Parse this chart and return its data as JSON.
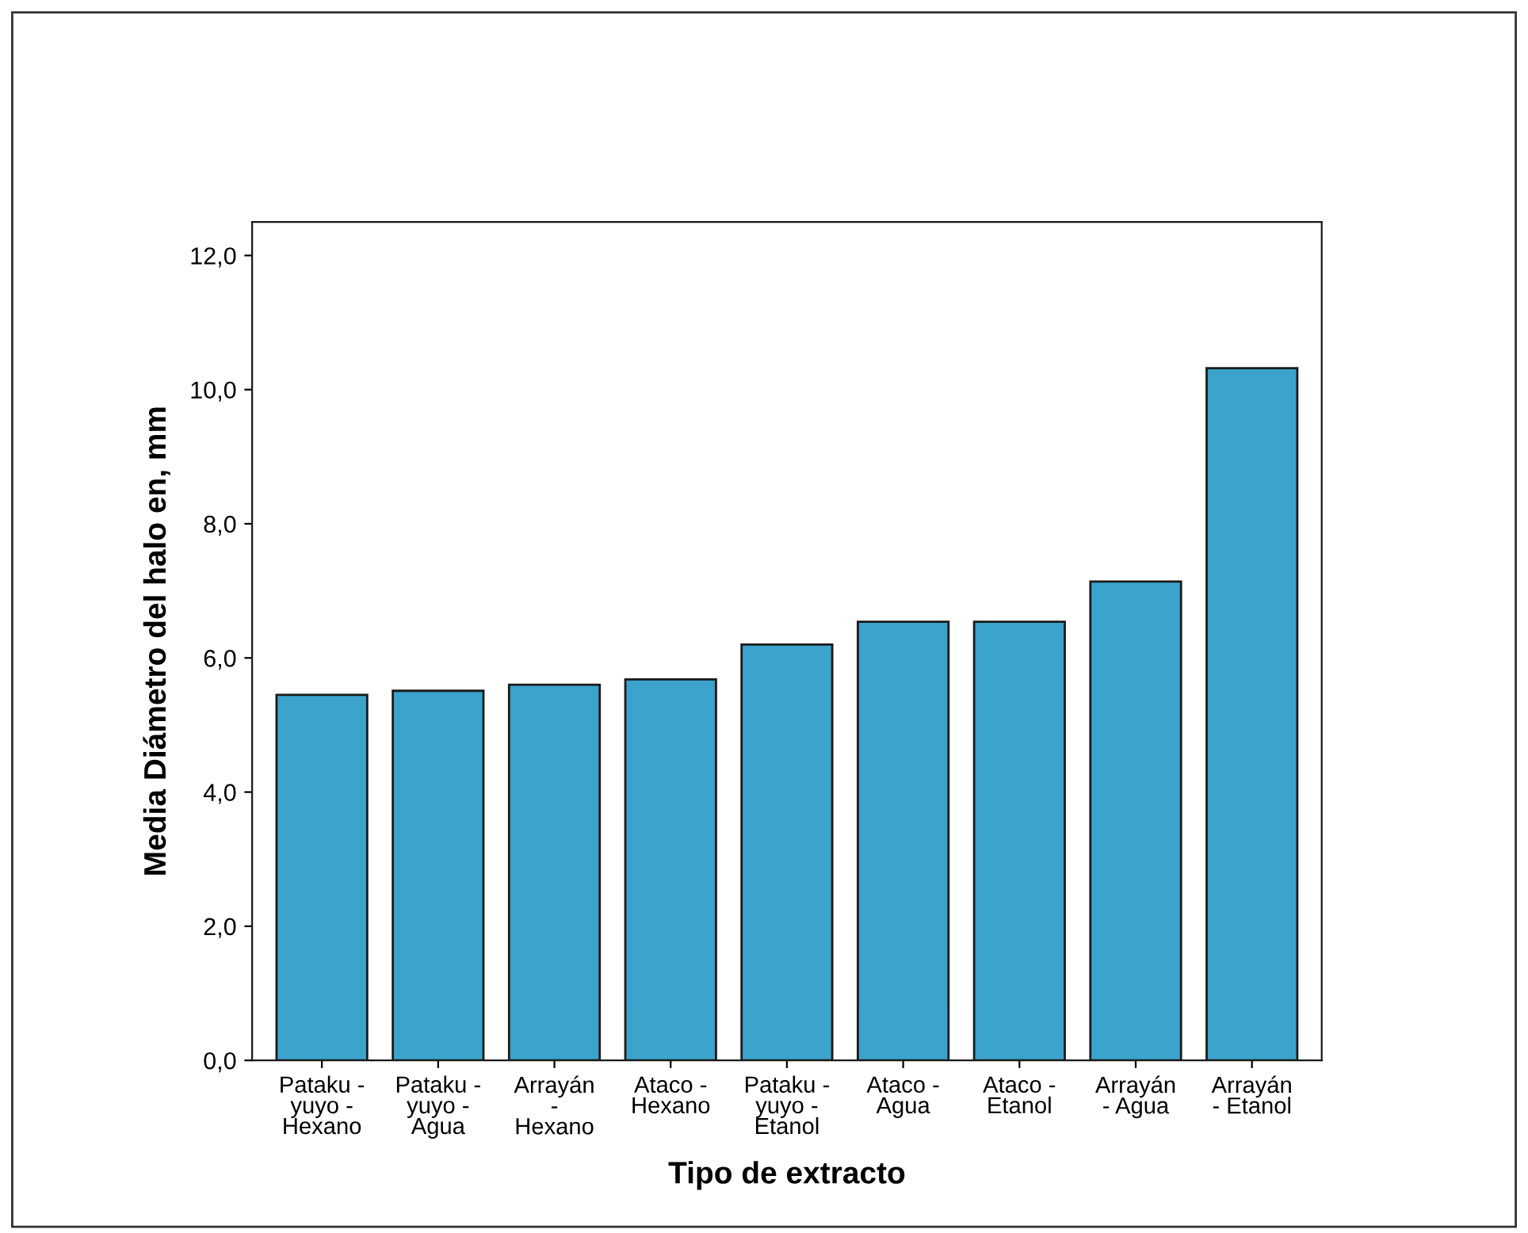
{
  "chart_data": {
    "type": "bar",
    "xlabel": "Tipo de extracto",
    "ylabel": "Media Diámetro del halo en, mm",
    "categories": [
      "Pataku -\nyuyo -\nHexano",
      "Pataku -\nyuyo -\nAgua",
      "Arrayán\n-\nHexano",
      "Ataco -\nHexano",
      "Pataku -\nyuyo -\nEtanol",
      "Ataco -\nAgua",
      "Ataco -\nEtanol",
      "Arrayán\n- Agua",
      "Arrayán\n- Etanol"
    ],
    "values": [
      5.45,
      5.51,
      5.6,
      5.68,
      6.2,
      6.54,
      6.54,
      7.14,
      10.32
    ],
    "color": "#3ba3cc",
    "ylim": [
      0,
      12.5
    ],
    "yticks": [
      {
        "value": 0,
        "label": "0,0"
      },
      {
        "value": 2,
        "label": "2,0"
      },
      {
        "value": 4,
        "label": "4,0"
      },
      {
        "value": 6,
        "label": "6,0"
      },
      {
        "value": 8,
        "label": "8,0"
      },
      {
        "value": 10,
        "label": "10,0"
      },
      {
        "value": 12,
        "label": "12,0"
      }
    ],
    "grid": false,
    "legend": false
  }
}
